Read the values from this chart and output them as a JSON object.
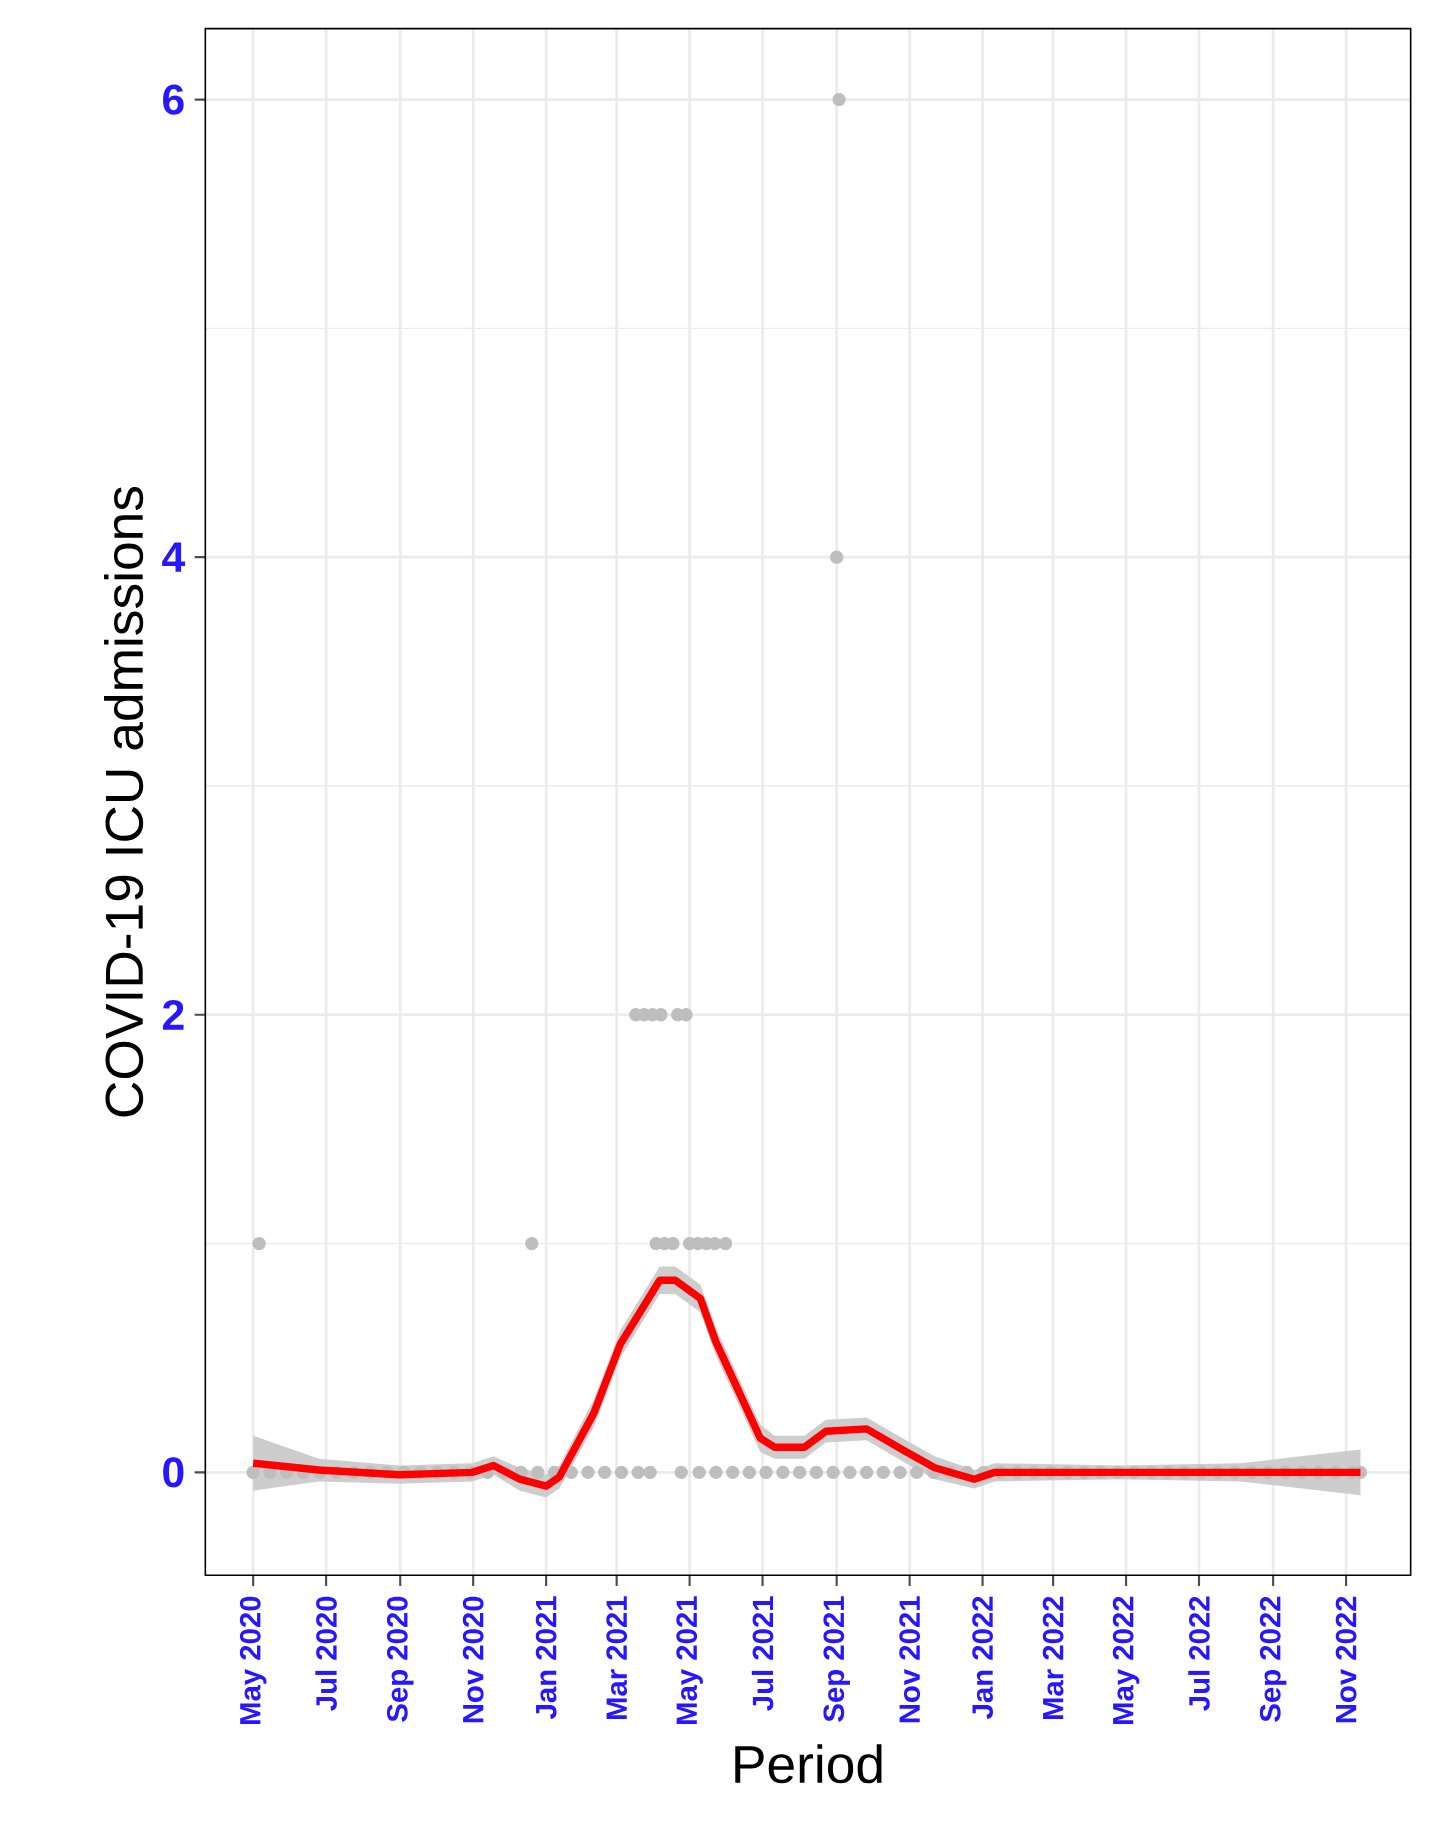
{
  "chart_data": {
    "type": "scatter",
    "xlabel": "Period",
    "ylabel": "COVID-19 ICU admissions",
    "xlim": [
      "2020-03-22",
      "2022-12-25"
    ],
    "ylim": [
      -0.45,
      6.31
    ],
    "yticks": [
      0,
      2,
      4,
      6
    ],
    "xticks": [
      {
        "value": "2020-05-01",
        "label": "May 2020"
      },
      {
        "value": "2020-07-01",
        "label": "Jul 2020"
      },
      {
        "value": "2020-09-01",
        "label": "Sep 2020"
      },
      {
        "value": "2020-11-01",
        "label": "Nov 2020"
      },
      {
        "value": "2021-01-01",
        "label": "Jan 2021"
      },
      {
        "value": "2021-03-01",
        "label": "Mar 2021"
      },
      {
        "value": "2021-05-01",
        "label": "May 2021"
      },
      {
        "value": "2021-07-01",
        "label": "Jul 2021"
      },
      {
        "value": "2021-09-01",
        "label": "Sep 2021"
      },
      {
        "value": "2021-11-01",
        "label": "Nov 2021"
      },
      {
        "value": "2022-01-01",
        "label": "Jan 2022"
      },
      {
        "value": "2022-03-01",
        "label": "Mar 2022"
      },
      {
        "value": "2022-05-01",
        "label": "May 2022"
      },
      {
        "value": "2022-07-01",
        "label": "Jul 2022"
      },
      {
        "value": "2022-09-01",
        "label": "Sep 2022"
      },
      {
        "value": "2022-11-01",
        "label": "Nov 2022"
      }
    ],
    "grid": true,
    "marker": "circle",
    "series": [
      {
        "color": "#bebebe",
        "x": [
          "2020-05-01",
          "2020-05-06",
          "2020-05-15",
          "2020-05-29",
          "2020-06-12",
          "2020-06-26",
          "2020-07-10",
          "2020-07-24",
          "2020-08-07",
          "2020-08-21",
          "2020-09-04",
          "2020-09-18",
          "2020-10-02",
          "2020-10-16",
          "2020-10-30",
          "2020-11-13",
          "2020-11-27",
          "2020-12-11",
          "2020-12-20",
          "2020-12-25",
          "2021-01-08",
          "2021-01-22",
          "2021-02-05",
          "2021-02-19",
          "2021-03-05",
          "2021-03-17",
          "2021-03-19",
          "2021-03-24",
          "2021-03-29",
          "2021-03-31",
          "2021-04-03",
          "2021-04-07",
          "2021-04-10",
          "2021-04-17",
          "2021-04-21",
          "2021-04-24",
          "2021-04-28",
          "2021-05-01",
          "2021-05-08",
          "2021-05-09",
          "2021-05-15",
          "2021-05-22",
          "2021-05-23",
          "2021-05-31",
          "2021-06-06",
          "2021-06-20",
          "2021-07-04",
          "2021-07-18",
          "2021-08-01",
          "2021-08-15",
          "2021-08-29",
          "2021-09-01",
          "2021-09-03",
          "2021-09-12",
          "2021-09-26",
          "2021-10-10",
          "2021-10-24",
          "2021-11-07",
          "2021-11-21",
          "2021-12-05",
          "2021-12-19",
          "2022-01-02",
          "2022-01-16",
          "2022-01-30",
          "2022-02-13",
          "2022-02-27",
          "2022-03-13",
          "2022-03-27",
          "2022-04-10",
          "2022-04-24",
          "2022-05-08",
          "2022-05-22",
          "2022-06-05",
          "2022-06-19",
          "2022-07-03",
          "2022-07-17",
          "2022-07-31",
          "2022-08-14",
          "2022-08-28",
          "2022-09-11",
          "2022-09-25",
          "2022-10-09",
          "2022-10-23",
          "2022-11-06",
          "2022-11-13"
        ],
        "values": [
          0,
          1,
          0,
          0,
          0,
          0,
          0,
          0,
          0,
          0,
          0,
          0,
          0,
          0,
          0,
          0,
          0,
          0,
          1,
          0,
          0,
          0,
          0,
          0,
          0,
          2,
          0,
          2,
          0,
          2,
          1,
          2,
          1,
          1,
          2,
          0,
          2,
          1,
          1,
          0,
          1,
          1,
          0,
          1,
          0,
          0,
          0,
          0,
          0,
          0,
          0,
          4,
          6,
          0,
          0,
          0,
          0,
          0,
          0,
          0,
          0,
          0,
          0,
          0,
          0,
          0,
          0,
          0,
          0,
          0,
          0,
          0,
          0,
          0,
          0,
          0,
          0,
          0,
          0,
          0,
          0,
          0,
          0,
          0,
          0
        ]
      },
      {
        "type": "line",
        "color": "#ff0000",
        "marker": "none",
        "line_style": "solid",
        "x": [
          "2020-05-01",
          "2020-06-25",
          "2020-08-31",
          "2020-10-31",
          "2020-11-18",
          "2020-12-10",
          "2021-01-01",
          "2021-01-12",
          "2021-02-10",
          "2021-03-04",
          "2021-04-06",
          "2021-04-19",
          "2021-05-10",
          "2021-05-23",
          "2021-06-07",
          "2021-06-29",
          "2021-07-11",
          "2021-08-05",
          "2021-08-23",
          "2021-09-26",
          "2021-10-29",
          "2021-11-22",
          "2021-12-25",
          "2022-01-11",
          "2022-04-26",
          "2022-08-05",
          "2022-11-13"
        ],
        "values": [
          0.04,
          0.01,
          -0.01,
          0.0,
          0.03,
          -0.03,
          -0.06,
          -0.02,
          0.26,
          0.56,
          0.84,
          0.84,
          0.76,
          0.57,
          0.4,
          0.15,
          0.11,
          0.11,
          0.18,
          0.19,
          0.09,
          0.02,
          -0.03,
          0.0,
          0.0,
          0.0,
          0.0
        ],
        "lower": [
          -0.08,
          -0.04,
          -0.05,
          -0.04,
          -0.01,
          -0.08,
          -0.11,
          -0.07,
          0.2,
          0.5,
          0.78,
          0.78,
          0.7,
          0.51,
          0.34,
          0.09,
          0.06,
          0.06,
          0.13,
          0.14,
          0.04,
          -0.03,
          -0.07,
          -0.04,
          -0.03,
          -0.04,
          -0.1
        ],
        "upper": [
          0.16,
          0.06,
          0.03,
          0.04,
          0.07,
          0.02,
          -0.01,
          0.03,
          0.32,
          0.62,
          0.9,
          0.9,
          0.82,
          0.63,
          0.46,
          0.21,
          0.16,
          0.16,
          0.23,
          0.24,
          0.14,
          0.07,
          0.01,
          0.04,
          0.03,
          0.04,
          0.1
        ]
      }
    ]
  }
}
